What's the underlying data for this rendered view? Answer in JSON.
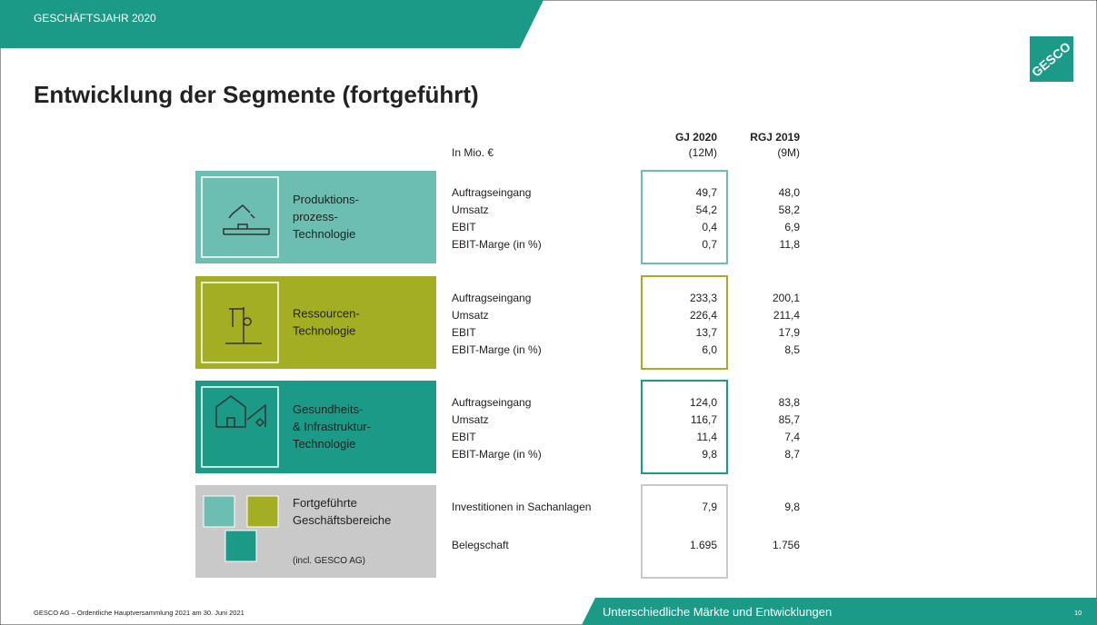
{
  "header": {
    "tag": "GESCHÄFTSJAHR 2020",
    "logo": "GESCO"
  },
  "title": "Entwicklung der Segmente (fortgeführt)",
  "table": {
    "unit": "In Mio. €",
    "columns": [
      {
        "name": "GJ 2020",
        "period": "(12M)"
      },
      {
        "name": "RGJ 2019",
        "period": "(9M)"
      }
    ],
    "segments": [
      {
        "name_lines": [
          "Produktions-",
          "prozess-",
          "Technologie"
        ],
        "rows": [
          [
            "Auftragseingang",
            "49,7",
            "48,0"
          ],
          [
            "Umsatz",
            "54,2",
            "58,2"
          ],
          [
            "EBIT",
            "0,4",
            "6,9"
          ],
          [
            "EBIT-Marge (in %)",
            "0,7",
            "11,8"
          ]
        ]
      },
      {
        "name_lines": [
          "Ressourcen-",
          "Technologie"
        ],
        "rows": [
          [
            "Auftragseingang",
            "233,3",
            "200,1"
          ],
          [
            "Umsatz",
            "226,4",
            "211,4"
          ],
          [
            "EBIT",
            "13,7",
            "17,9"
          ],
          [
            "EBIT-Marge (in %)",
            "6,0",
            "8,5"
          ]
        ]
      },
      {
        "name_lines": [
          "Gesundheits-",
          "& Infrastruktur-",
          "Technologie"
        ],
        "rows": [
          [
            "Auftragseingang",
            "124,0",
            "83,8"
          ],
          [
            "Umsatz",
            "116,7",
            "85,7"
          ],
          [
            "EBIT",
            "11,4",
            "7,4"
          ],
          [
            "EBIT-Marge (in %)",
            "9,8",
            "8,7"
          ]
        ]
      },
      {
        "name_lines": [
          "Fortgeführte",
          "Geschäftsbereiche"
        ],
        "note": "(incl. GESCO AG)",
        "rows": [
          [
            "Investitionen in Sachanlagen",
            "7,9",
            "9,8"
          ],
          [
            "Belegschaft",
            "1.695",
            "1.756"
          ]
        ]
      }
    ]
  },
  "footer": {
    "left": "GESCO  AG – Ordentliche Hauptversammlung 2021 am 30. Juni 2021",
    "banner": "Unterschiedliche  Märkte  und  Entwicklungen",
    "page": "10"
  }
}
